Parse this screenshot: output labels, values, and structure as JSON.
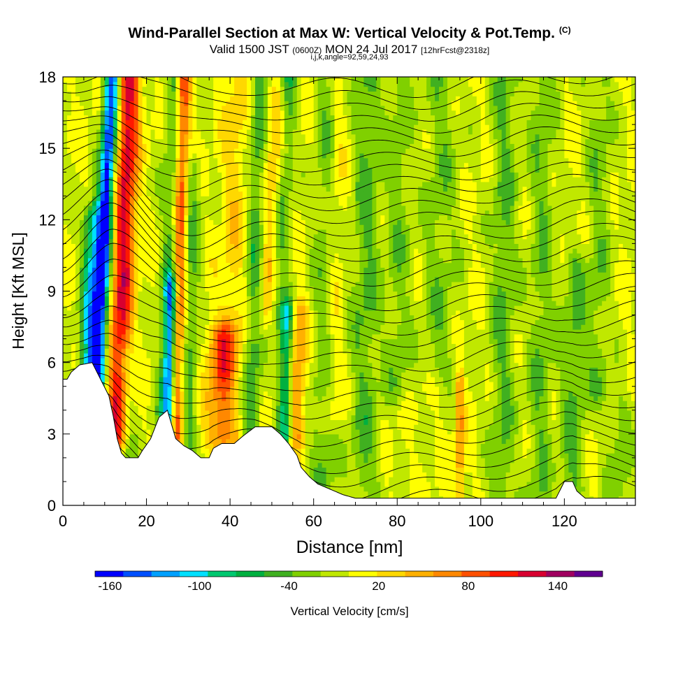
{
  "title": {
    "main": "Wind-Parallel Section at Max W: Vertical Velocity & Pot.Temp.",
    "tag": "(C)",
    "valid_a": "Valid 1500 JST",
    "valid_b": "(0600Z)",
    "valid_c": "MON 24 Jul 2017",
    "valid_d": "[12hrFcst@2318z]",
    "indices": "i,j,k,angle=92,59,24,93"
  },
  "chart_data": {
    "type": "heatmap",
    "xlabel": "Distance [nm]",
    "ylabel": "Height [Kft MSL]",
    "xlim": [
      0,
      137
    ],
    "ylim": [
      0,
      18
    ],
    "x_ticks": [
      0,
      20,
      40,
      60,
      80,
      100,
      120
    ],
    "y_ticks": [
      0,
      3,
      6,
      9,
      12,
      15,
      18
    ],
    "colorbar": {
      "label": "Vertical Velocity [cm/s]",
      "range": [
        -170,
        170
      ],
      "tick_labels": [
        -160,
        -100,
        -40,
        20,
        80,
        140
      ],
      "colors": [
        "#0000ff",
        "#0050ff",
        "#00a0ff",
        "#00e0ff",
        "#00c870",
        "#00b040",
        "#40b020",
        "#80d000",
        "#c0e800",
        "#ffff00",
        "#ffd800",
        "#ffb000",
        "#ff8800",
        "#ff5000",
        "#ff1800",
        "#d80030",
        "#a00060",
        "#600090"
      ]
    },
    "terrain_kft": [
      [
        0,
        5.3
      ],
      [
        1,
        5.3
      ],
      [
        2,
        5.6
      ],
      [
        4,
        5.9
      ],
      [
        7,
        6.0
      ],
      [
        9,
        5.3
      ],
      [
        11,
        4.6
      ],
      [
        12,
        3.8
      ],
      [
        13,
        2.8
      ],
      [
        14,
        2.2
      ],
      [
        15,
        2.0
      ],
      [
        18,
        2.0
      ],
      [
        19,
        2.3
      ],
      [
        21,
        2.8
      ],
      [
        23,
        3.7
      ],
      [
        25,
        4.0
      ],
      [
        26,
        3.4
      ],
      [
        27,
        2.8
      ],
      [
        29,
        2.5
      ],
      [
        31,
        2.3
      ],
      [
        33,
        2.0
      ],
      [
        35,
        2.0
      ],
      [
        36,
        2.4
      ],
      [
        38,
        2.6
      ],
      [
        41,
        2.6
      ],
      [
        43,
        2.9
      ],
      [
        46,
        3.3
      ],
      [
        50,
        3.3
      ],
      [
        52,
        3.0
      ],
      [
        54,
        2.6
      ],
      [
        56,
        2.1
      ],
      [
        57,
        1.6
      ],
      [
        59,
        1.2
      ],
      [
        61,
        0.9
      ],
      [
        63,
        0.75
      ],
      [
        67,
        0.45
      ],
      [
        70,
        0.3
      ],
      [
        77,
        0.3
      ],
      [
        84,
        0.3
      ],
      [
        104,
        0.3
      ],
      [
        118,
        0.3
      ],
      [
        120,
        1.0
      ],
      [
        122,
        1.0
      ],
      [
        123,
        0.6
      ],
      [
        125,
        0.3
      ],
      [
        137,
        0.3
      ]
    ],
    "w_features": [
      {
        "x0": 8,
        "slope": 0.28,
        "w": -160,
        "width": 1.8,
        "z0": 4.5,
        "z1": 18
      },
      {
        "x0": 6,
        "slope": 0.22,
        "w": -100,
        "width": 2.2,
        "z0": 6,
        "z1": 12
      },
      {
        "x0": 13,
        "slope": 0.2,
        "w": 120,
        "width": 2.6,
        "z0": 3,
        "z1": 18
      },
      {
        "x0": 25,
        "slope": 0.12,
        "w": -100,
        "width": 1.6,
        "z0": 2.5,
        "z1": 9
      },
      {
        "x0": 25,
        "slope": 0.14,
        "w": -50,
        "width": 2.5,
        "z0": 2.5,
        "z1": 18
      },
      {
        "x0": 27,
        "slope": 0.13,
        "w": 110,
        "width": 1.6,
        "z0": 3,
        "z1": 18
      },
      {
        "x0": 30,
        "slope": 0.1,
        "w": -40,
        "width": 2.0,
        "z0": 2.5,
        "z1": 14
      },
      {
        "x0": 38,
        "slope": 0.02,
        "w": 80,
        "width": 3.5,
        "z0": 3,
        "z1": 7
      },
      {
        "x0": 40,
        "slope": 0.15,
        "w": 30,
        "width": 3.0,
        "z0": 6,
        "z1": 18
      },
      {
        "x0": 45,
        "slope": 0.15,
        "w": -50,
        "width": 2.2,
        "z0": 3,
        "z1": 18
      },
      {
        "x0": 53,
        "slope": 0.1,
        "w": -90,
        "width": 1.6,
        "z0": 3,
        "z1": 8
      },
      {
        "x0": 56,
        "slope": 0.1,
        "w": 60,
        "width": 2.0,
        "z0": 3,
        "z1": 8
      },
      {
        "x0": 51,
        "slope": 0.3,
        "w": -50,
        "width": 2.2,
        "z0": 8,
        "z1": 18
      },
      {
        "x0": 49,
        "slope": 0.25,
        "w": 50,
        "width": 2.4,
        "z0": 8,
        "z1": 17
      },
      {
        "x0": 62,
        "slope": 0.12,
        "w": -40,
        "width": 3.0,
        "z0": 1,
        "z1": 18
      },
      {
        "x0": 64,
        "slope": 0.15,
        "w": 30,
        "width": 2.5,
        "z0": 4,
        "z1": 18
      },
      {
        "x0": 72,
        "slope": 0.05,
        "w": -40,
        "width": 3.5,
        "z0": 1,
        "z1": 18
      },
      {
        "x0": 80,
        "slope": 0.05,
        "w": -30,
        "width": 3.0,
        "z0": 5,
        "z1": 18
      },
      {
        "x0": 95,
        "slope": 0.0,
        "w": 60,
        "width": 1.0,
        "z0": 0.5,
        "z1": 5
      },
      {
        "x0": 90,
        "slope": 0.05,
        "w": -30,
        "width": 4.0,
        "z0": 6,
        "z1": 18
      },
      {
        "x0": 105,
        "slope": 0.05,
        "w": -40,
        "width": 3.0,
        "z0": 0.5,
        "z1": 18
      },
      {
        "x0": 114,
        "slope": 0.05,
        "w": -35,
        "width": 3.0,
        "z0": 0.5,
        "z1": 18
      },
      {
        "x0": 122,
        "slope": 0.04,
        "w": -40,
        "width": 3.0,
        "z0": 1,
        "z1": 10
      },
      {
        "x0": 128,
        "slope": 0.03,
        "w": -30,
        "width": 3.0,
        "z0": 5,
        "z1": 18
      },
      {
        "x0": 133,
        "slope": 0.02,
        "w": -30,
        "width": 3.0,
        "z0": 0.5,
        "z1": 4
      },
      {
        "x0": 15,
        "slope": 0.05,
        "w": -40,
        "width": 2.0,
        "z0": 2,
        "z1": 6
      }
    ],
    "theta_contours": {
      "count": 34,
      "base_kft": 0.7,
      "spacing_kft": 0.52
    }
  }
}
